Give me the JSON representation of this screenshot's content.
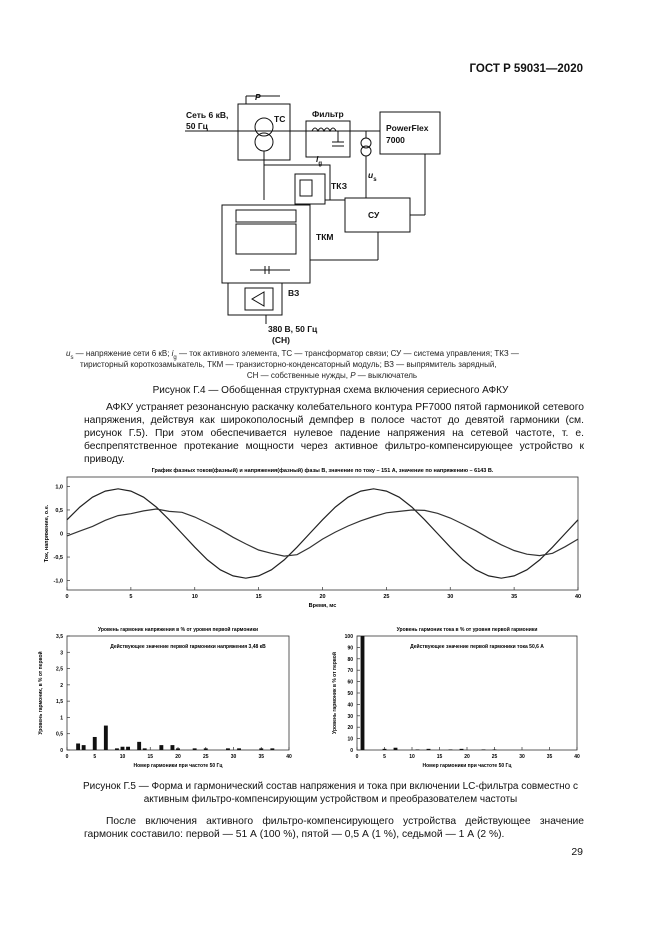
{
  "header": {
    "standard": "ГОСТ Р 59031—2020"
  },
  "diagram": {
    "switch": "P",
    "grid_line1": "Сеть 6 кВ,",
    "grid_line2": "50 Гц",
    "transformer": "ТС",
    "filter": "Фильтр",
    "drive_line1": "PowerFlex",
    "drive_line2": "7000",
    "current_main": "i",
    "current_sub": "g",
    "voltage_main": "u",
    "voltage_sub": "s",
    "thyristor": "ТКЗ",
    "control": "СУ",
    "module": "ТКМ",
    "rectifier": "ВЗ",
    "aux_line1": "380 В, 50 Гц",
    "aux_line2": "(СН)"
  },
  "figure_g4": {
    "legend": [
      [
        "u",
        "s",
        " — напряжение сети 6 кВ; ",
        "i",
        "g",
        " — ток активного элемента, ТС — трансформатор связи; СУ — система управления; ТКЗ —"
      ],
      [
        "тиристорный короткозамыкатель, ТКМ — транзисторно-конденсаторный модуль; ВЗ — выпрямитель зарядный,"
      ],
      [
        "СН — собственные нужды, ",
        "Р",
        " — выключатель"
      ]
    ],
    "caption": "Рисунок Г.4 — Обобщенная структурная схема включения сериесного АФКУ"
  },
  "paragraph1": "АФКУ устраняет резонансную раскачку колебательного контура PF7000 пятой гармоникой сетевого напряжения, действуя как широкополосный демпфер в полосе частот до девятой гармоники (см. рисунок Г.5). При этом обеспечивается нулевое падение напряжения на сетевой частоте, т. е. беспрепятственное протекание мощности через активное фильтро-компенсирующее устройство к приводу.",
  "chart_data": [
    {
      "type": "line",
      "title": "График фазных токов(фазный) и напряжения(фазный) фазы B, значение по току – 151 А, значение по напряжению – 6143 В.",
      "x_label": "Время, мс",
      "y_label": "Ток, напряжение, о.е.",
      "x": [
        0,
        1,
        2,
        3,
        4,
        5,
        6,
        7,
        8,
        9,
        10,
        11,
        12,
        13,
        14,
        15,
        16,
        17,
        18,
        19,
        20,
        21,
        22,
        23,
        24,
        25,
        26,
        27,
        28,
        29,
        30,
        31,
        32,
        33,
        34,
        35,
        36,
        37,
        38,
        39,
        40
      ],
      "series": [
        {
          "color": "#222222",
          "values": [
            0.29,
            0.56,
            0.77,
            0.9,
            0.95,
            0.9,
            0.77,
            0.56,
            0.29,
            0,
            -0.29,
            -0.56,
            -0.77,
            -0.9,
            -0.95,
            -0.9,
            -0.77,
            -0.56,
            -0.29,
            0,
            0.29,
            0.56,
            0.77,
            0.9,
            0.95,
            0.9,
            0.77,
            0.56,
            0.29,
            0,
            -0.29,
            -0.56,
            -0.77,
            -0.9,
            -0.95,
            -0.9,
            -0.77,
            -0.56,
            -0.29,
            0,
            0.29
          ]
        },
        {
          "color": "#333333",
          "values": [
            -0.05,
            0.05,
            0.15,
            0.28,
            0.38,
            0.42,
            0.48,
            0.52,
            0.47,
            0.45,
            0.35,
            0.22,
            0.08,
            -0.08,
            -0.22,
            -0.35,
            -0.42,
            -0.48,
            -0.45,
            -0.3,
            -0.12,
            0.03,
            0.16,
            0.27,
            0.36,
            0.44,
            0.47,
            0.5,
            0.49,
            0.43,
            0.33,
            0.2,
            0.06,
            -0.1,
            -0.24,
            -0.36,
            -0.44,
            -0.47,
            -0.42,
            -0.28,
            -0.12
          ]
        }
      ],
      "xlim": [
        0,
        40
      ],
      "xticks": [
        0,
        5,
        10,
        15,
        20,
        25,
        30,
        35,
        40
      ],
      "ylim": [
        -1.2,
        1.2
      ],
      "yticks": [
        {
          "value": 1,
          "label": "1,0"
        },
        {
          "value": 0.5,
          "label": "0,5"
        },
        0,
        {
          "value": -0.5,
          "label": "-0,5"
        },
        {
          "value": -1,
          "label": "-1,0"
        }
      ]
    },
    {
      "type": "bar",
      "title": "Уровень гармоник напряжения в % от уровня первой гармоники",
      "subtitle": "Действующее значение первой гармоники напряжения 3,48 кВ",
      "x_label": "Номер гармоники при частоте 50 Гц",
      "y_label": "Уровень гармоник, в % от первой",
      "color": "#111111",
      "x": [
        2,
        3,
        5,
        7,
        9,
        10,
        11,
        13,
        14,
        17,
        19,
        20,
        23,
        25,
        29,
        31,
        35,
        37
      ],
      "values": [
        0.2,
        0.15,
        0.4,
        0.75,
        0.05,
        0.1,
        0.1,
        0.25,
        0.05,
        0.15,
        0.15,
        0.05,
        0.05,
        0.05,
        0.05,
        0.05,
        0.05,
        0.05
      ],
      "xlim": [
        0,
        40
      ],
      "xticks": [
        0,
        5,
        10,
        15,
        20,
        25,
        30,
        35,
        40
      ],
      "ylim": [
        0,
        3.5
      ],
      "yticks": [
        0,
        {
          "value": 0.5,
          "label": "0,5"
        },
        1,
        {
          "value": 1.5,
          "label": "1,5"
        },
        2,
        {
          "value": 2.5,
          "label": "2,5"
        },
        3,
        {
          "value": 3.5,
          "label": "3,5"
        }
      ]
    },
    {
      "type": "bar",
      "title": "Уровень гармоник тока в % от уровня первой гармоники",
      "subtitle": "Действующее значение первой гармоники тока 50,6 А",
      "x_label": "Номер гармоники при частоте 50 Гц",
      "y_label": "Уровень гармоник в % от первой",
      "color": "#111111",
      "x": [
        1,
        5,
        7,
        11,
        13,
        17,
        19,
        23,
        25
      ],
      "values": [
        100,
        1,
        2,
        0.5,
        1,
        0.5,
        1,
        0.5,
        0.5
      ],
      "xlim": [
        0,
        40
      ],
      "xticks": [
        0,
        5,
        10,
        15,
        20,
        25,
        30,
        35,
        40
      ],
      "ylim": [
        0,
        100
      ],
      "yticks": [
        0,
        10,
        20,
        30,
        40,
        50,
        60,
        70,
        80,
        90,
        100
      ]
    }
  ],
  "figure_g5_caption": "Рисунок Г.5 — Форма и гармонический состав напряжения и тока при включении LC-фильтра совместно с активным фильтро-компенсирующим устройством и преобразователем частоты",
  "paragraph2": "После включения активного фильтро-компенсирующего устройства действующее значение гармоник составило: первой — 51 А (100 %), пятой — 0,5 А (1 %), седьмой — 1 А (2 %).",
  "page_number": "29"
}
